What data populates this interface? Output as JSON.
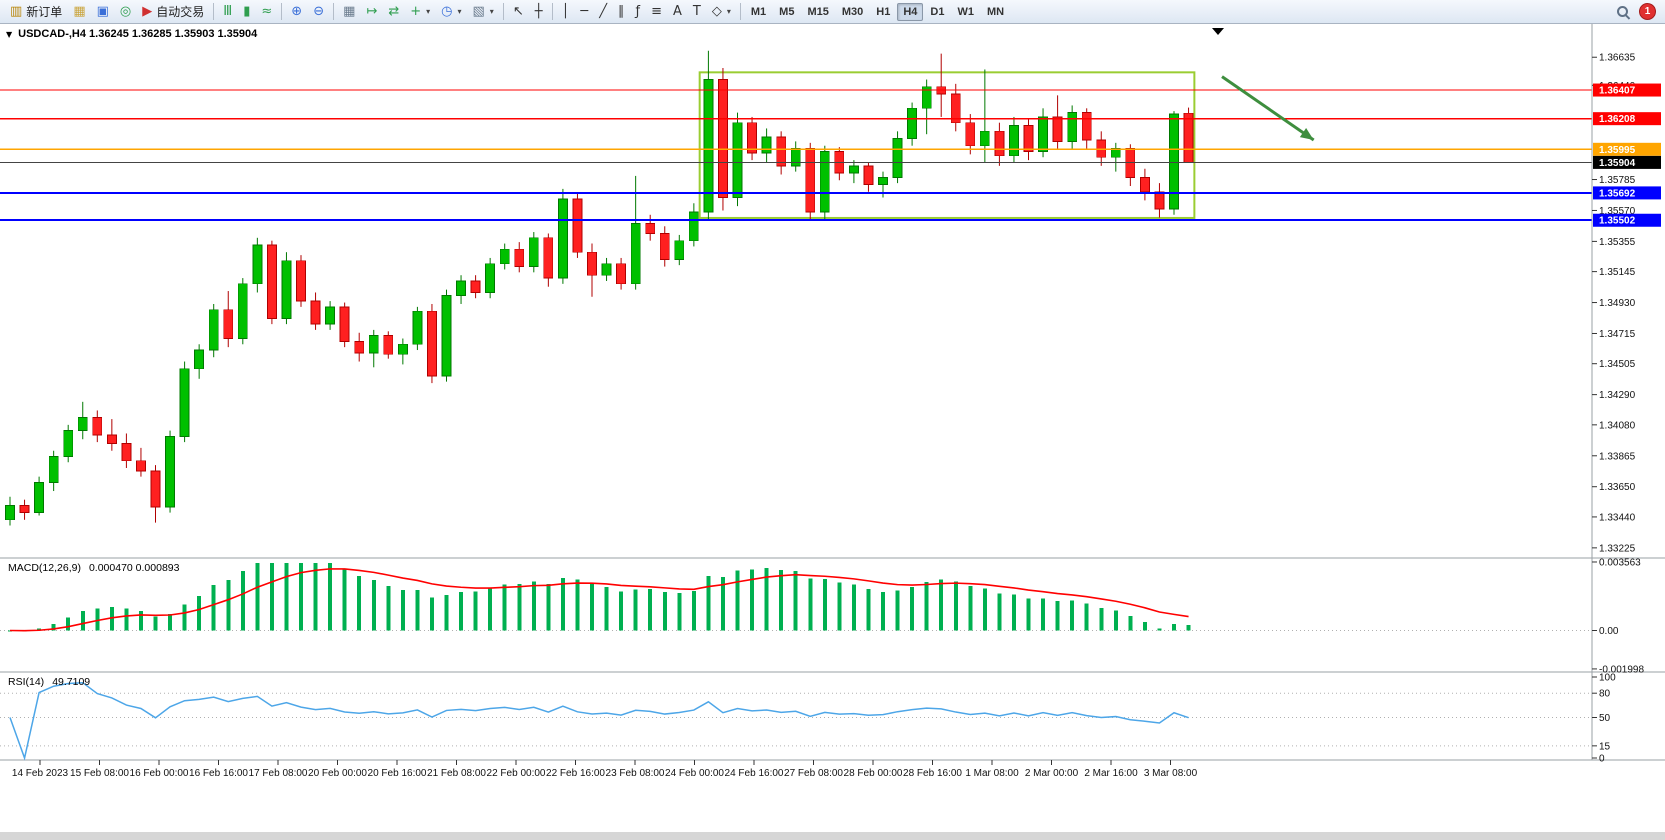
{
  "toolbar": {
    "notification_count": "1",
    "active_timeframe": "H4",
    "timeframes": [
      "M1",
      "M5",
      "M15",
      "M30",
      "H1",
      "H4",
      "D1",
      "W1",
      "MN"
    ],
    "items": [
      {
        "type": "button",
        "name": "new-order-button",
        "label": "新订单",
        "glyph": "▥",
        "color": "#b8860b"
      },
      {
        "type": "icon",
        "name": "market-watch-icon",
        "glyph": "▦",
        "color": "#caa53d"
      },
      {
        "type": "icon",
        "name": "data-window-icon",
        "glyph": "▣",
        "color": "#3a6fd8"
      },
      {
        "type": "icon",
        "name": "navigator-icon",
        "glyph": "◎",
        "color": "#2f9e4f"
      },
      {
        "type": "button",
        "name": "auto-trading-button",
        "label": "自动交易",
        "glyph": "▶",
        "color": "#d03030"
      },
      {
        "type": "sep"
      },
      {
        "type": "icon",
        "name": "bar-chart-icon",
        "glyph": "Ⅲ",
        "color": "#2f9e4f"
      },
      {
        "type": "icon",
        "name": "candlestick-chart-icon",
        "glyph": "▮",
        "color": "#2f9e4f"
      },
      {
        "type": "icon",
        "name": "line-chart-icon",
        "glyph": "≈",
        "color": "#2f9e4f"
      },
      {
        "type": "sep"
      },
      {
        "type": "icon",
        "name": "zoom-in-icon",
        "glyph": "⊕",
        "color": "#3a6fd8"
      },
      {
        "type": "icon",
        "name": "zoom-out-icon",
        "glyph": "⊖",
        "color": "#3a6fd8"
      },
      {
        "type": "sep"
      },
      {
        "type": "icon",
        "name": "tile-windows-icon",
        "glyph": "▦",
        "color": "#6a7b8d"
      },
      {
        "type": "icon",
        "name": "auto-scroll-icon",
        "glyph": "↦",
        "color": "#2f9e4f"
      },
      {
        "type": "icon",
        "name": "chart-shift-icon",
        "glyph": "⇄",
        "color": "#2f9e4f"
      },
      {
        "type": "icon",
        "name": "new-chart-button",
        "glyph": "+",
        "color": "#2f9e4f",
        "dropdown": true
      },
      {
        "type": "icon",
        "name": "period-selector-button",
        "glyph": "◷",
        "color": "#3a6fd8",
        "dropdown": true
      },
      {
        "type": "icon",
        "name": "template-button",
        "glyph": "▧",
        "color": "#6a7b8d",
        "dropdown": true
      },
      {
        "type": "sep"
      },
      {
        "type": "icon",
        "name": "cursor-icon",
        "glyph": "↖",
        "color": "#333333"
      },
      {
        "type": "icon",
        "name": "crosshair-icon",
        "glyph": "┼",
        "color": "#333333"
      },
      {
        "type": "sep"
      },
      {
        "type": "icon",
        "name": "vertical-line-icon",
        "glyph": "│",
        "color": "#333333"
      },
      {
        "type": "icon",
        "name": "horizontal-line-icon",
        "glyph": "─",
        "color": "#333333"
      },
      {
        "type": "icon",
        "name": "trendline-icon",
        "glyph": "╱",
        "color": "#333333"
      },
      {
        "type": "icon",
        "name": "equidistant-channel-icon",
        "glyph": "∥",
        "color": "#333333"
      },
      {
        "type": "icon",
        "name": "fibonacci-icon",
        "glyph": "ƒ",
        "color": "#333333"
      },
      {
        "type": "icon",
        "name": "cycle-lines-icon",
        "glyph": "≡",
        "color": "#333333"
      },
      {
        "type": "icon",
        "name": "text-icon",
        "glyph": "A",
        "color": "#333333"
      },
      {
        "type": "icon",
        "name": "text-label-icon",
        "glyph": "T",
        "color": "#333333"
      },
      {
        "type": "icon",
        "name": "shapes-button",
        "glyph": "◇",
        "color": "#333333",
        "dropdown": true
      },
      {
        "type": "sep"
      }
    ]
  },
  "chart": {
    "menu_glyph": "▼",
    "symbol_line": "USDCAD-,H4 1.36245 1.36285 1.35903 1.35904"
  },
  "macd": {
    "title": "MACD(12,26,9)",
    "values": "0.000470 0.000893"
  },
  "rsi": {
    "title": "RSI(14)",
    "value": "49.7109"
  },
  "chart_data": {
    "type": "candlestick",
    "title": "USDCAD-,H4",
    "current_price_badge": {
      "price": 1.35904,
      "text": "1.35904",
      "color": "#000000"
    },
    "price_axis_labels": [
      "1.36635",
      "1.36440",
      "1.35785",
      "1.35570",
      "1.35355",
      "1.35145",
      "1.34930",
      "1.34715",
      "1.34505",
      "1.34290",
      "1.34080",
      "1.33865",
      "1.33650",
      "1.33440",
      "1.33225"
    ],
    "x_labels": [
      "14 Feb 2023",
      "15 Feb 08:00",
      "16 Feb 00:00",
      "16 Feb 16:00",
      "17 Feb 08:00",
      "20 Feb 00:00",
      "20 Feb 16:00",
      "21 Feb 08:00",
      "22 Feb 00:00",
      "22 Feb 16:00",
      "23 Feb 08:00",
      "24 Feb 00:00",
      "24 Feb 16:00",
      "27 Feb 08:00",
      "28 Feb 00:00",
      "28 Feb 16:00",
      "1 Mar 08:00",
      "2 Mar 00:00",
      "2 Mar 16:00",
      "3 Mar 08:00"
    ],
    "levels": [
      {
        "price": 1.36407,
        "text": "1.36407",
        "color": "#FF0000",
        "width": 1.4,
        "kind": "resistance"
      },
      {
        "price": 1.36208,
        "text": "1.36208",
        "color": "#FF0000",
        "width": 1.4,
        "kind": "resistance"
      },
      {
        "price": 1.35995,
        "text": "1.35995",
        "color": "#FFA500",
        "width": 1.8,
        "kind": "pivot"
      },
      {
        "price": 1.35692,
        "text": "1.35692",
        "color": "#0000FF",
        "width": 2,
        "kind": "support"
      },
      {
        "price": 1.35502,
        "text": "1.35502",
        "color": "#0000FF",
        "width": 2,
        "kind": "support"
      }
    ],
    "rectangle": {
      "from_index": 47.4,
      "to_index": 81.4,
      "top_price": 1.3653,
      "bottom_price": 1.35518,
      "color": "#9ACD32"
    },
    "arrow": {
      "from_index": 83.3,
      "from_price": 1.365,
      "to_index": 89.6,
      "to_price": 1.3606,
      "color": "#3E8E3E"
    },
    "colors": {
      "bull": "#00C000",
      "bull_edge": "#007800",
      "bear": "#FF2020",
      "bear_edge": "#B00000",
      "macd_hist": "#00B050",
      "macd_signal": "#FF0000",
      "rsi_line": "#4DA6E8"
    },
    "indicators": [
      {
        "name": "MACD",
        "params": [
          12,
          26,
          9
        ],
        "axis_labels": [
          "0.003563",
          "0.00",
          "-0.001998"
        ]
      },
      {
        "name": "RSI",
        "params": [
          14
        ],
        "axis_labels": [
          "100",
          "80",
          "50",
          "15",
          "0"
        ],
        "levels": [
          80,
          50,
          15
        ]
      }
    ],
    "candles": [
      [
        1.3342,
        1.3358,
        1.3338,
        1.3352
      ],
      [
        1.3352,
        1.3356,
        1.3342,
        1.3347
      ],
      [
        1.3347,
        1.3372,
        1.3345,
        1.3368
      ],
      [
        1.3368,
        1.339,
        1.3362,
        1.3386
      ],
      [
        1.3386,
        1.3408,
        1.3382,
        1.3404
      ],
      [
        1.3404,
        1.3424,
        1.3398,
        1.3413
      ],
      [
        1.3413,
        1.3418,
        1.3396,
        1.3401
      ],
      [
        1.3401,
        1.3412,
        1.339,
        1.3395
      ],
      [
        1.3395,
        1.3402,
        1.3378,
        1.3383
      ],
      [
        1.3383,
        1.3392,
        1.3372,
        1.3376
      ],
      [
        1.3376,
        1.338,
        1.334,
        1.3351
      ],
      [
        1.3351,
        1.3404,
        1.3347,
        1.34
      ],
      [
        1.34,
        1.3452,
        1.3396,
        1.3447
      ],
      [
        1.3447,
        1.3464,
        1.344,
        1.346
      ],
      [
        1.346,
        1.3492,
        1.3455,
        1.3488
      ],
      [
        1.3488,
        1.3501,
        1.3462,
        1.3468
      ],
      [
        1.3468,
        1.351,
        1.3464,
        1.3506
      ],
      [
        1.3506,
        1.3538,
        1.35,
        1.3533
      ],
      [
        1.3533,
        1.3536,
        1.3478,
        1.3482
      ],
      [
        1.3482,
        1.3528,
        1.3478,
        1.3522
      ],
      [
        1.3522,
        1.3526,
        1.349,
        1.3494
      ],
      [
        1.3494,
        1.35,
        1.3474,
        1.3478
      ],
      [
        1.3478,
        1.3494,
        1.3474,
        1.349
      ],
      [
        1.349,
        1.3493,
        1.3462,
        1.3466
      ],
      [
        1.3466,
        1.3472,
        1.3452,
        1.3458
      ],
      [
        1.3458,
        1.3474,
        1.3448,
        1.347
      ],
      [
        1.347,
        1.3473,
        1.3454,
        1.3457
      ],
      [
        1.3457,
        1.3468,
        1.345,
        1.3464
      ],
      [
        1.3464,
        1.349,
        1.346,
        1.3487
      ],
      [
        1.3487,
        1.3492,
        1.3437,
        1.3442
      ],
      [
        1.3442,
        1.3502,
        1.3438,
        1.3498
      ],
      [
        1.3498,
        1.3512,
        1.3492,
        1.3508
      ],
      [
        1.3508,
        1.3512,
        1.3496,
        1.35
      ],
      [
        1.35,
        1.3524,
        1.3496,
        1.352
      ],
      [
        1.352,
        1.3534,
        1.3516,
        1.353
      ],
      [
        1.353,
        1.3535,
        1.3514,
        1.3518
      ],
      [
        1.3518,
        1.3542,
        1.3514,
        1.3538
      ],
      [
        1.3538,
        1.3541,
        1.3504,
        1.351
      ],
      [
        1.351,
        1.3572,
        1.3506,
        1.3565
      ],
      [
        1.3565,
        1.3569,
        1.3524,
        1.3528
      ],
      [
        1.3528,
        1.3534,
        1.3497,
        1.3512
      ],
      [
        1.3512,
        1.3524,
        1.3508,
        1.352
      ],
      [
        1.352,
        1.3524,
        1.3502,
        1.3506
      ],
      [
        1.3506,
        1.3581,
        1.3502,
        1.3548
      ],
      [
        1.3548,
        1.3554,
        1.3536,
        1.3541
      ],
      [
        1.3541,
        1.3546,
        1.3518,
        1.3523
      ],
      [
        1.3523,
        1.354,
        1.3519,
        1.3536
      ],
      [
        1.3536,
        1.3562,
        1.3532,
        1.3556
      ],
      [
        1.3556,
        1.3668,
        1.355,
        1.3648
      ],
      [
        1.3648,
        1.3656,
        1.3557,
        1.3566
      ],
      [
        1.3566,
        1.3625,
        1.356,
        1.3618
      ],
      [
        1.3618,
        1.3622,
        1.3592,
        1.3597
      ],
      [
        1.3597,
        1.3614,
        1.359,
        1.3608
      ],
      [
        1.3608,
        1.3612,
        1.3582,
        1.3588
      ],
      [
        1.3588,
        1.3605,
        1.3584,
        1.36
      ],
      [
        1.36,
        1.3604,
        1.3551,
        1.3556
      ],
      [
        1.3556,
        1.3602,
        1.355,
        1.3598
      ],
      [
        1.3598,
        1.3601,
        1.3578,
        1.3583
      ],
      [
        1.3583,
        1.3592,
        1.3576,
        1.3588
      ],
      [
        1.3588,
        1.359,
        1.357,
        1.3575
      ],
      [
        1.3575,
        1.3584,
        1.3566,
        1.358
      ],
      [
        1.358,
        1.3612,
        1.3576,
        1.3607
      ],
      [
        1.3607,
        1.3632,
        1.3602,
        1.3628
      ],
      [
        1.3628,
        1.3648,
        1.361,
        1.3643
      ],
      [
        1.3643,
        1.3666,
        1.3622,
        1.3638
      ],
      [
        1.3638,
        1.3645,
        1.3612,
        1.3618
      ],
      [
        1.3618,
        1.3624,
        1.3596,
        1.3602
      ],
      [
        1.3602,
        1.3655,
        1.359,
        1.3612
      ],
      [
        1.3612,
        1.3618,
        1.3588,
        1.3595
      ],
      [
        1.3595,
        1.3622,
        1.359,
        1.3616
      ],
      [
        1.3616,
        1.3621,
        1.3592,
        1.3598
      ],
      [
        1.3598,
        1.3628,
        1.3594,
        1.3622
      ],
      [
        1.3622,
        1.3637,
        1.36,
        1.3605
      ],
      [
        1.3605,
        1.363,
        1.36,
        1.3625
      ],
      [
        1.3625,
        1.3628,
        1.36,
        1.3606
      ],
      [
        1.3606,
        1.3612,
        1.3588,
        1.3594
      ],
      [
        1.3594,
        1.3604,
        1.3584,
        1.36
      ],
      [
        1.36,
        1.3603,
        1.3574,
        1.358
      ],
      [
        1.358,
        1.3586,
        1.3564,
        1.357
      ],
      [
        1.357,
        1.3576,
        1.3552,
        1.3558
      ],
      [
        1.3558,
        1.3626,
        1.3554,
        1.3624
      ],
      [
        1.36245,
        1.36285,
        1.35903,
        1.35904
      ]
    ]
  }
}
